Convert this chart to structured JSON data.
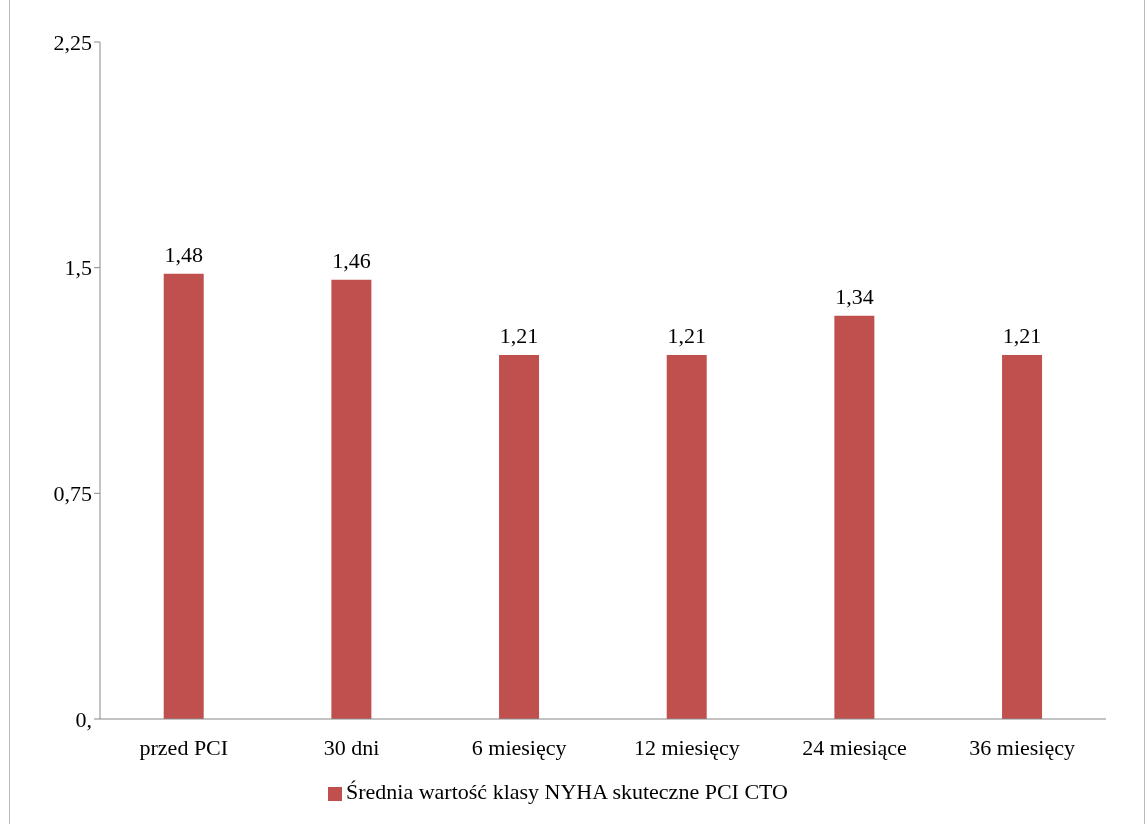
{
  "chart_data": {
    "type": "bar",
    "categories": [
      "przed PCI",
      "30 dni",
      "6 miesięcy",
      "12 miesięcy",
      "24 miesiące",
      "36 miesięcy"
    ],
    "series": [
      {
        "name": "Średnia wartość klasy NYHA skuteczne PCI CTO",
        "color": "#c0504d",
        "values": [
          1.48,
          1.46,
          1.21,
          1.21,
          1.34,
          1.21
        ],
        "value_labels": [
          "1,48",
          "1,46",
          "1,21",
          "1,21",
          "1,34",
          "1,21"
        ]
      }
    ],
    "ylim": [
      0,
      2.25
    ],
    "yticks": [
      {
        "value": 0,
        "label": "0,"
      },
      {
        "value": 0.75,
        "label": "0,75"
      },
      {
        "value": 1.5,
        "label": "1,5"
      },
      {
        "value": 2.25,
        "label": "2,25"
      }
    ],
    "grid": false,
    "legend": "bottom"
  }
}
